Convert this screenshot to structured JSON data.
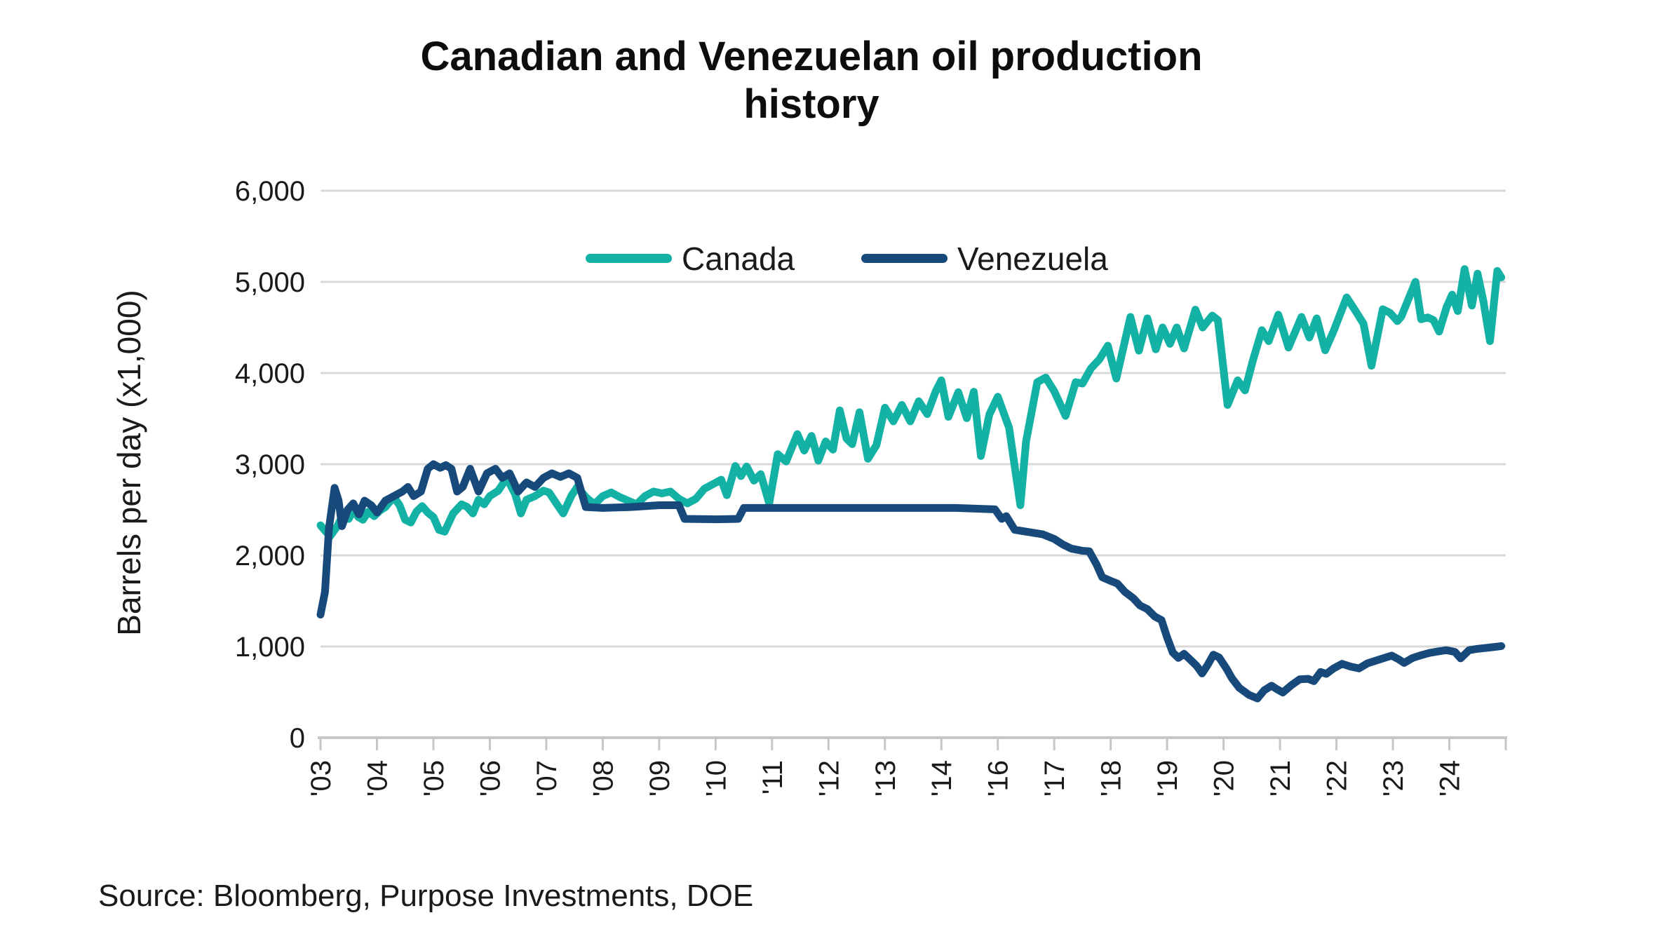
{
  "title": {
    "line1": "Canadian and Venezuelan oil production",
    "line2": "history"
  },
  "y_axis": {
    "title": "Barrels per day (x1,000)",
    "ticks": [
      {
        "label": "6,000",
        "value": 6000
      },
      {
        "label": "5,000",
        "value": 5000
      },
      {
        "label": "4,000",
        "value": 4000
      },
      {
        "label": "3,000",
        "value": 3000
      },
      {
        "label": "2,000",
        "value": 2000
      },
      {
        "label": "1,000",
        "value": 1000
      },
      {
        "label": "0",
        "value": 0
      }
    ]
  },
  "x_axis": {
    "tick_labels": [
      "'03",
      "'04",
      "'05",
      "'06",
      "'07",
      "'08",
      "'09",
      "'10",
      "'11",
      "'12",
      "'13",
      "'14",
      "'16",
      "'17",
      "'18",
      "'19",
      "'20",
      "'21",
      "'22",
      "'23",
      "'24",
      ""
    ]
  },
  "legend": [
    {
      "label": "Canada",
      "color": "#14b1a5"
    },
    {
      "label": "Venezuela",
      "color": "#17497b"
    }
  ],
  "source": "Source: Bloomberg, Purpose Investments, DOE",
  "colors": {
    "canada": "#14b1a5",
    "venezuela": "#17497b",
    "grid": "#d9d9d9",
    "axis": "#c6c6c6",
    "text": "#1a1a1a"
  },
  "chart_data": {
    "type": "line",
    "title": "Canadian and Venezuelan oil production history",
    "xlabel": "",
    "ylabel": "Barrels per day (x1,000)",
    "ylim": [
      0,
      6000
    ],
    "xlim": [
      2003,
      2025
    ],
    "grid": "horizontal",
    "legend_position": "top-center",
    "x_unit": "year (monthly series)",
    "note": "x-axis year labels skip '15; last tick unlabeled",
    "series": [
      {
        "name": "Canada",
        "color": "#14b1a5",
        "points": [
          [
            2003.0,
            2330
          ],
          [
            2003.08,
            2270
          ],
          [
            2003.17,
            2210
          ],
          [
            2003.3,
            2320
          ],
          [
            2003.4,
            2450
          ],
          [
            2003.5,
            2400
          ],
          [
            2003.58,
            2500
          ],
          [
            2003.67,
            2420
          ],
          [
            2003.75,
            2390
          ],
          [
            2003.85,
            2480
          ],
          [
            2003.95,
            2430
          ],
          [
            2004.05,
            2490
          ],
          [
            2004.15,
            2530
          ],
          [
            2004.3,
            2640
          ],
          [
            2004.4,
            2550
          ],
          [
            2004.5,
            2390
          ],
          [
            2004.6,
            2360
          ],
          [
            2004.7,
            2480
          ],
          [
            2004.8,
            2540
          ],
          [
            2004.9,
            2470
          ],
          [
            2005.0,
            2420
          ],
          [
            2005.1,
            2280
          ],
          [
            2005.2,
            2260
          ],
          [
            2005.35,
            2460
          ],
          [
            2005.5,
            2560
          ],
          [
            2005.6,
            2530
          ],
          [
            2005.7,
            2460
          ],
          [
            2005.8,
            2610
          ],
          [
            2005.9,
            2560
          ],
          [
            2006.0,
            2650
          ],
          [
            2006.15,
            2710
          ],
          [
            2006.3,
            2850
          ],
          [
            2006.45,
            2670
          ],
          [
            2006.55,
            2460
          ],
          [
            2006.65,
            2610
          ],
          [
            2006.8,
            2650
          ],
          [
            2006.95,
            2710
          ],
          [
            2007.05,
            2690
          ],
          [
            2007.2,
            2550
          ],
          [
            2007.3,
            2460
          ],
          [
            2007.45,
            2660
          ],
          [
            2007.55,
            2750
          ],
          [
            2007.7,
            2640
          ],
          [
            2007.85,
            2560
          ],
          [
            2008.0,
            2650
          ],
          [
            2008.15,
            2690
          ],
          [
            2008.3,
            2640
          ],
          [
            2008.45,
            2600
          ],
          [
            2008.6,
            2560
          ],
          [
            2008.75,
            2650
          ],
          [
            2008.9,
            2700
          ],
          [
            2009.05,
            2680
          ],
          [
            2009.2,
            2700
          ],
          [
            2009.35,
            2620
          ],
          [
            2009.5,
            2570
          ],
          [
            2009.65,
            2620
          ],
          [
            2009.8,
            2730
          ],
          [
            2009.95,
            2780
          ],
          [
            2010.1,
            2830
          ],
          [
            2010.2,
            2660
          ],
          [
            2010.35,
            2980
          ],
          [
            2010.45,
            2870
          ],
          [
            2010.55,
            2975
          ],
          [
            2010.68,
            2820
          ],
          [
            2010.8,
            2890
          ],
          [
            2010.95,
            2570
          ],
          [
            2011.1,
            3110
          ],
          [
            2011.25,
            3030
          ],
          [
            2011.45,
            3330
          ],
          [
            2011.57,
            3150
          ],
          [
            2011.7,
            3310
          ],
          [
            2011.82,
            3040
          ],
          [
            2011.95,
            3250
          ],
          [
            2012.08,
            3160
          ],
          [
            2012.2,
            3590
          ],
          [
            2012.32,
            3280
          ],
          [
            2012.42,
            3220
          ],
          [
            2012.55,
            3570
          ],
          [
            2012.7,
            3060
          ],
          [
            2012.85,
            3210
          ],
          [
            2013.0,
            3620
          ],
          [
            2013.15,
            3470
          ],
          [
            2013.3,
            3650
          ],
          [
            2013.45,
            3470
          ],
          [
            2013.6,
            3690
          ],
          [
            2013.75,
            3550
          ],
          [
            2013.9,
            3800
          ],
          [
            2014.0,
            3920
          ],
          [
            2014.25,
            3520
          ],
          [
            2014.6,
            3790
          ],
          [
            2014.9,
            3505
          ],
          [
            2015.15,
            3795
          ],
          [
            2015.4,
            3090
          ],
          [
            2015.7,
            3545
          ],
          [
            2016.0,
            3740
          ],
          [
            2016.2,
            3400
          ],
          [
            2016.4,
            2550
          ],
          [
            2016.5,
            3250
          ],
          [
            2016.7,
            3900
          ],
          [
            2016.85,
            3950
          ],
          [
            2017.0,
            3800
          ],
          [
            2017.2,
            3530
          ],
          [
            2017.38,
            3900
          ],
          [
            2017.5,
            3885
          ],
          [
            2017.65,
            4050
          ],
          [
            2017.8,
            4150
          ],
          [
            2017.95,
            4300
          ],
          [
            2018.1,
            3940
          ],
          [
            2018.35,
            4615
          ],
          [
            2018.5,
            4245
          ],
          [
            2018.65,
            4600
          ],
          [
            2018.8,
            4260
          ],
          [
            2018.92,
            4500
          ],
          [
            2019.05,
            4320
          ],
          [
            2019.17,
            4500
          ],
          [
            2019.3,
            4270
          ],
          [
            2019.5,
            4695
          ],
          [
            2019.63,
            4500
          ],
          [
            2019.8,
            4630
          ],
          [
            2019.9,
            4580
          ],
          [
            2020.07,
            3650
          ],
          [
            2020.25,
            3920
          ],
          [
            2020.38,
            3810
          ],
          [
            2020.52,
            4140
          ],
          [
            2020.68,
            4470
          ],
          [
            2020.8,
            4350
          ],
          [
            2020.97,
            4640
          ],
          [
            2021.15,
            4280
          ],
          [
            2021.38,
            4615
          ],
          [
            2021.52,
            4390
          ],
          [
            2021.65,
            4600
          ],
          [
            2021.8,
            4250
          ],
          [
            2021.95,
            4460
          ],
          [
            2022.18,
            4830
          ],
          [
            2022.35,
            4670
          ],
          [
            2022.48,
            4540
          ],
          [
            2022.62,
            4080
          ],
          [
            2022.82,
            4700
          ],
          [
            2022.95,
            4660
          ],
          [
            2023.08,
            4570
          ],
          [
            2023.15,
            4620
          ],
          [
            2023.4,
            5000
          ],
          [
            2023.5,
            4590
          ],
          [
            2023.62,
            4610
          ],
          [
            2023.72,
            4580
          ],
          [
            2023.82,
            4455
          ],
          [
            2023.95,
            4720
          ],
          [
            2024.05,
            4860
          ],
          [
            2024.15,
            4680
          ],
          [
            2024.27,
            5140
          ],
          [
            2024.4,
            4740
          ],
          [
            2024.5,
            5090
          ],
          [
            2024.6,
            4800
          ],
          [
            2024.72,
            4350
          ],
          [
            2024.85,
            5120
          ],
          [
            2024.92,
            5050
          ]
        ]
      },
      {
        "name": "Venezuela",
        "color": "#17497b",
        "points": [
          [
            2003.0,
            1350
          ],
          [
            2003.08,
            1600
          ],
          [
            2003.15,
            2300
          ],
          [
            2003.25,
            2740
          ],
          [
            2003.32,
            2600
          ],
          [
            2003.38,
            2320
          ],
          [
            2003.48,
            2500
          ],
          [
            2003.58,
            2570
          ],
          [
            2003.68,
            2450
          ],
          [
            2003.78,
            2600
          ],
          [
            2003.9,
            2550
          ],
          [
            2004.0,
            2470
          ],
          [
            2004.15,
            2600
          ],
          [
            2004.3,
            2650
          ],
          [
            2004.45,
            2700
          ],
          [
            2004.55,
            2750
          ],
          [
            2004.65,
            2650
          ],
          [
            2004.78,
            2700
          ],
          [
            2004.9,
            2950
          ],
          [
            2005.0,
            3000
          ],
          [
            2005.12,
            2960
          ],
          [
            2005.22,
            2990
          ],
          [
            2005.32,
            2950
          ],
          [
            2005.42,
            2700
          ],
          [
            2005.52,
            2750
          ],
          [
            2005.65,
            2950
          ],
          [
            2005.8,
            2700
          ],
          [
            2005.95,
            2900
          ],
          [
            2006.1,
            2950
          ],
          [
            2006.22,
            2850
          ],
          [
            2006.35,
            2900
          ],
          [
            2006.5,
            2700
          ],
          [
            2006.65,
            2800
          ],
          [
            2006.8,
            2750
          ],
          [
            2006.95,
            2850
          ],
          [
            2007.1,
            2900
          ],
          [
            2007.25,
            2860
          ],
          [
            2007.4,
            2900
          ],
          [
            2007.55,
            2850
          ],
          [
            2007.62,
            2700
          ],
          [
            2007.7,
            2530
          ],
          [
            2008.0,
            2520
          ],
          [
            2008.5,
            2530
          ],
          [
            2009.0,
            2550
          ],
          [
            2009.35,
            2550
          ],
          [
            2009.45,
            2400
          ],
          [
            2010.0,
            2395
          ],
          [
            2010.4,
            2400
          ],
          [
            2010.5,
            2520
          ],
          [
            2011.5,
            2520
          ],
          [
            2013.0,
            2520
          ],
          [
            2014.5,
            2520
          ],
          [
            2015.9,
            2505
          ],
          [
            2016.07,
            2400
          ],
          [
            2016.15,
            2430
          ],
          [
            2016.3,
            2280
          ],
          [
            2016.5,
            2260
          ],
          [
            2016.8,
            2230
          ],
          [
            2017.0,
            2180
          ],
          [
            2017.15,
            2120
          ],
          [
            2017.3,
            2075
          ],
          [
            2017.5,
            2050
          ],
          [
            2017.62,
            2045
          ],
          [
            2017.75,
            1900
          ],
          [
            2017.85,
            1760
          ],
          [
            2018.0,
            1720
          ],
          [
            2018.12,
            1690
          ],
          [
            2018.25,
            1600
          ],
          [
            2018.4,
            1530
          ],
          [
            2018.52,
            1450
          ],
          [
            2018.65,
            1410
          ],
          [
            2018.78,
            1330
          ],
          [
            2018.9,
            1290
          ],
          [
            2019.0,
            1100
          ],
          [
            2019.1,
            935
          ],
          [
            2019.2,
            875
          ],
          [
            2019.3,
            920
          ],
          [
            2019.42,
            850
          ],
          [
            2019.52,
            790
          ],
          [
            2019.62,
            705
          ],
          [
            2019.72,
            800
          ],
          [
            2019.82,
            910
          ],
          [
            2019.92,
            880
          ],
          [
            2020.05,
            760
          ],
          [
            2020.15,
            650
          ],
          [
            2020.28,
            545
          ],
          [
            2020.45,
            470
          ],
          [
            2020.6,
            430
          ],
          [
            2020.72,
            520
          ],
          [
            2020.85,
            570
          ],
          [
            2020.95,
            530
          ],
          [
            2021.05,
            495
          ],
          [
            2021.2,
            575
          ],
          [
            2021.35,
            640
          ],
          [
            2021.5,
            645
          ],
          [
            2021.6,
            620
          ],
          [
            2021.72,
            720
          ],
          [
            2021.82,
            700
          ],
          [
            2021.95,
            760
          ],
          [
            2022.1,
            810
          ],
          [
            2022.25,
            780
          ],
          [
            2022.4,
            760
          ],
          [
            2022.55,
            815
          ],
          [
            2022.7,
            845
          ],
          [
            2022.85,
            875
          ],
          [
            2022.98,
            900
          ],
          [
            2023.1,
            860
          ],
          [
            2023.2,
            820
          ],
          [
            2023.35,
            875
          ],
          [
            2023.5,
            905
          ],
          [
            2023.65,
            930
          ],
          [
            2023.8,
            945
          ],
          [
            2023.95,
            960
          ],
          [
            2024.1,
            940
          ],
          [
            2024.2,
            870
          ],
          [
            2024.35,
            960
          ],
          [
            2024.5,
            975
          ],
          [
            2024.65,
            985
          ],
          [
            2024.8,
            995
          ],
          [
            2024.92,
            1005
          ]
        ]
      }
    ]
  }
}
